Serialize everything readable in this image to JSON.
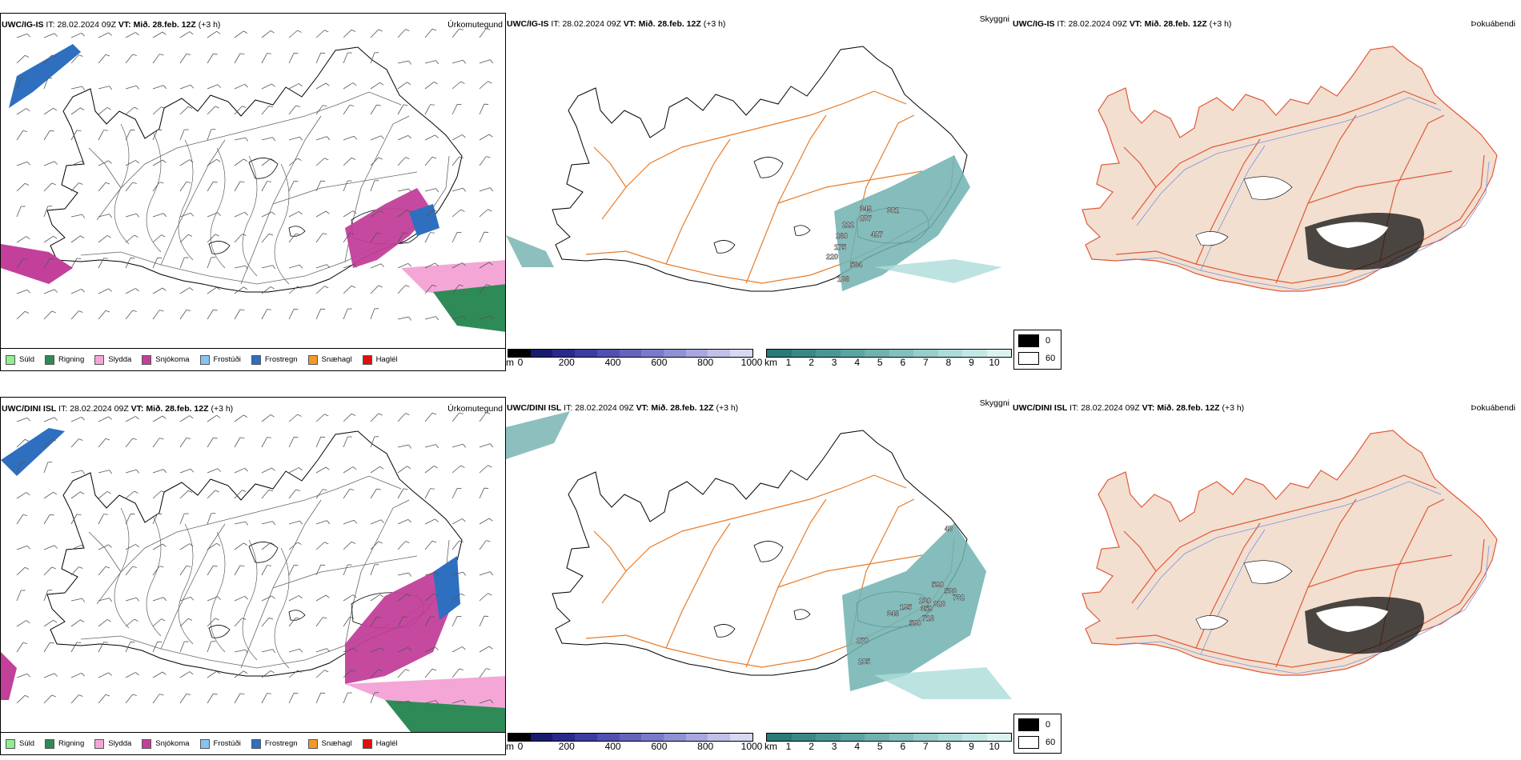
{
  "rows": [
    {
      "model": "UWC/IG-IS",
      "it_label": "IT:",
      "it_value": "28.02.2024 09Z",
      "vt_label": "VT:",
      "vt_value": "Mið. 28.feb. 12Z",
      "lead": "(+3 h)"
    },
    {
      "model": "UWC/DINI ISL",
      "it_label": "IT:",
      "it_value": "28.02.2024 09Z",
      "vt_label": "VT:",
      "vt_value": "Mið. 28.feb. 12Z",
      "lead": "(+3 h)"
    }
  ],
  "panel_titles": [
    "Úrkomutegund",
    "Skyggni",
    "Þokuábendi"
  ],
  "precip_legend": [
    {
      "label": "Súld",
      "color": "#90ee90"
    },
    {
      "label": "Rigning",
      "color": "#2e8b57"
    },
    {
      "label": "Slydda",
      "color": "#f4a6d7"
    },
    {
      "label": "Snjókoma",
      "color": "#c2409a"
    },
    {
      "label": "Frostúði",
      "color": "#87c3f2"
    },
    {
      "label": "Frostregn",
      "color": "#2e6fc0"
    },
    {
      "label": "Snæhagl",
      "color": "#f09a2a"
    },
    {
      "label": "Haglél",
      "color": "#e01010"
    }
  ],
  "height_scale": {
    "unit": "m",
    "ticks": [
      "0",
      "200",
      "400",
      "600",
      "800",
      "1000"
    ],
    "colors": [
      "#000000",
      "#1a1a6e",
      "#2a2a8a",
      "#3c3ca0",
      "#5050b0",
      "#6464bc",
      "#7a7ac8",
      "#9090d4",
      "#a8a8de",
      "#c0c0e8",
      "#d8d8f2"
    ]
  },
  "vis_scale": {
    "unit": "km",
    "ticks": [
      "1",
      "2",
      "3",
      "4",
      "5",
      "6",
      "7",
      "8",
      "9",
      "10"
    ],
    "colors": [
      "#2a7a78",
      "#3a8886",
      "#4b9694",
      "#5ca4a2",
      "#6fb2b0",
      "#82c0be",
      "#97cecc",
      "#acdcda",
      "#c2e8e6",
      "#dcf2f1"
    ]
  },
  "fog_legend": [
    {
      "label": "0",
      "color": "#000000"
    },
    {
      "label": "60",
      "color": "#ffffff"
    }
  ],
  "vis_labels_row1": [
    "349",
    "287",
    "301",
    "222",
    "427",
    "260",
    "175",
    "220",
    "564",
    "186"
  ],
  "vis_labels_row2": [
    "48",
    "590",
    "533",
    "732",
    "230",
    "328",
    "195",
    "359",
    "346",
    "716",
    "590",
    "270",
    "205"
  ],
  "colors": {
    "coast": "#000000",
    "roads": "#e87d2a",
    "fog_land": "#f2dfd0",
    "fog_roads": "#e05a3a",
    "rivers": "#7a92e0"
  }
}
